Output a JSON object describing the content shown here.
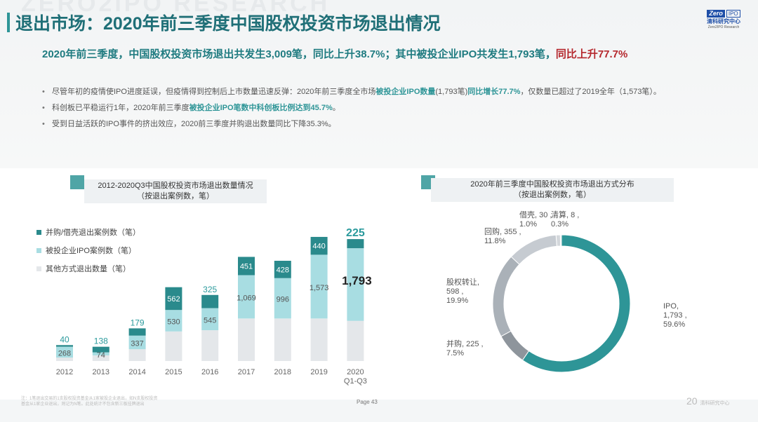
{
  "header": {
    "watermark": "ZERO2IPO RESEARCH",
    "title": "退出市场：2020年前三季度中国股权投资市场退出情况",
    "logo": {
      "brand_left": "Zero",
      "brand_right": "IPO",
      "cn": "清科研究中心",
      "en": "Zero2IPO Research"
    }
  },
  "headline": {
    "main": "2020年前三季度，中国股权投资市场退出共发生3,009笔，同比上升38.7%；其中被投企业IPO共发生1,793笔，",
    "red": "同比上升77.7%"
  },
  "bullets": [
    {
      "a": "尽管年初的疫情使IPO进度延误，但疫情得到控制后上市数量迅速反弹：2020年前三季度全市场",
      "h1": "被投企业IPO数量",
      "b": "(1,793笔)",
      "h2": "同比增长77.7%",
      "c": "，仅数量已超过了2019全年（1,573笔）。"
    },
    {
      "a": "科创板已平稳运行1年，2020年前三季度",
      "h1": "被投企业IPO笔数中科创板比例达到45.7%",
      "b": "。"
    },
    {
      "a": "受到日益活跃的IPO事件的挤出效应，2020前三季度并购退出数量同比下降35.3%。"
    }
  ],
  "chart_data": [
    {
      "type": "bar",
      "stacked": true,
      "title": "2012-2020Q3中国股权投资市场退出数量情况",
      "subtitle": "（按退出案例数，笔）",
      "categories": [
        "2012",
        "2013",
        "2014",
        "2015",
        "2016",
        "2017",
        "2018",
        "2019",
        "2020 Q1-Q3"
      ],
      "series": [
        {
          "name": "其他方式退出数量（笔）",
          "color": "#e4e7ea",
          "values": [
            85,
            140,
            290,
            730,
            760,
            1050,
            1050,
            1050,
            991
          ],
          "labeled": false
        },
        {
          "name": "被投企业IPO案例数（笔）",
          "color": "#a8dde2",
          "values": [
            268,
            74,
            337,
            530,
            545,
            1069,
            996,
            1573,
            1793
          ]
        },
        {
          "name": "并购/借壳退出案例数（笔）",
          "color": "#2a8a8c",
          "values": [
            40,
            138,
            179,
            562,
            325,
            451,
            428,
            440,
            225
          ]
        }
      ],
      "legend_placement": "top-left",
      "grid": false
    },
    {
      "type": "pie",
      "donut": true,
      "title": "2020年前三季度中国股权投资市场退出方式分布",
      "subtitle": "（按退出案例数，笔）",
      "slices": [
        {
          "label": "IPO",
          "value": 1793,
          "value_text": "1,793",
          "percent": "59.6%",
          "color": "#2e9597"
        },
        {
          "label": "并购",
          "value": 225,
          "value_text": "225",
          "percent": "7.5%",
          "color": "#8e959c"
        },
        {
          "label": "股权转让",
          "value": 598,
          "value_text": "598",
          "percent": "19.9%",
          "color": "#aab1b8"
        },
        {
          "label": "回购",
          "value": 355,
          "value_text": "355",
          "percent": "11.8%",
          "color": "#c6cbd1"
        },
        {
          "label": "借壳",
          "value": 30,
          "value_text": "30",
          "percent": "1.0%",
          "color": "#d3d7db"
        },
        {
          "label": "清算",
          "value": 8,
          "value_text": "8",
          "percent": "0.3%",
          "color": "#e0e3e6"
        }
      ]
    }
  ],
  "footer": {
    "note": "注：1笔退出交易的1支股权投资基金从1家被投企业退出，如N支股权投资基金从1家企业退出，则记为N笔。此处统计不包含新三板挂牌退出",
    "page": "Page  43",
    "brand": "清科研究中心",
    "brand_mark": "20"
  }
}
